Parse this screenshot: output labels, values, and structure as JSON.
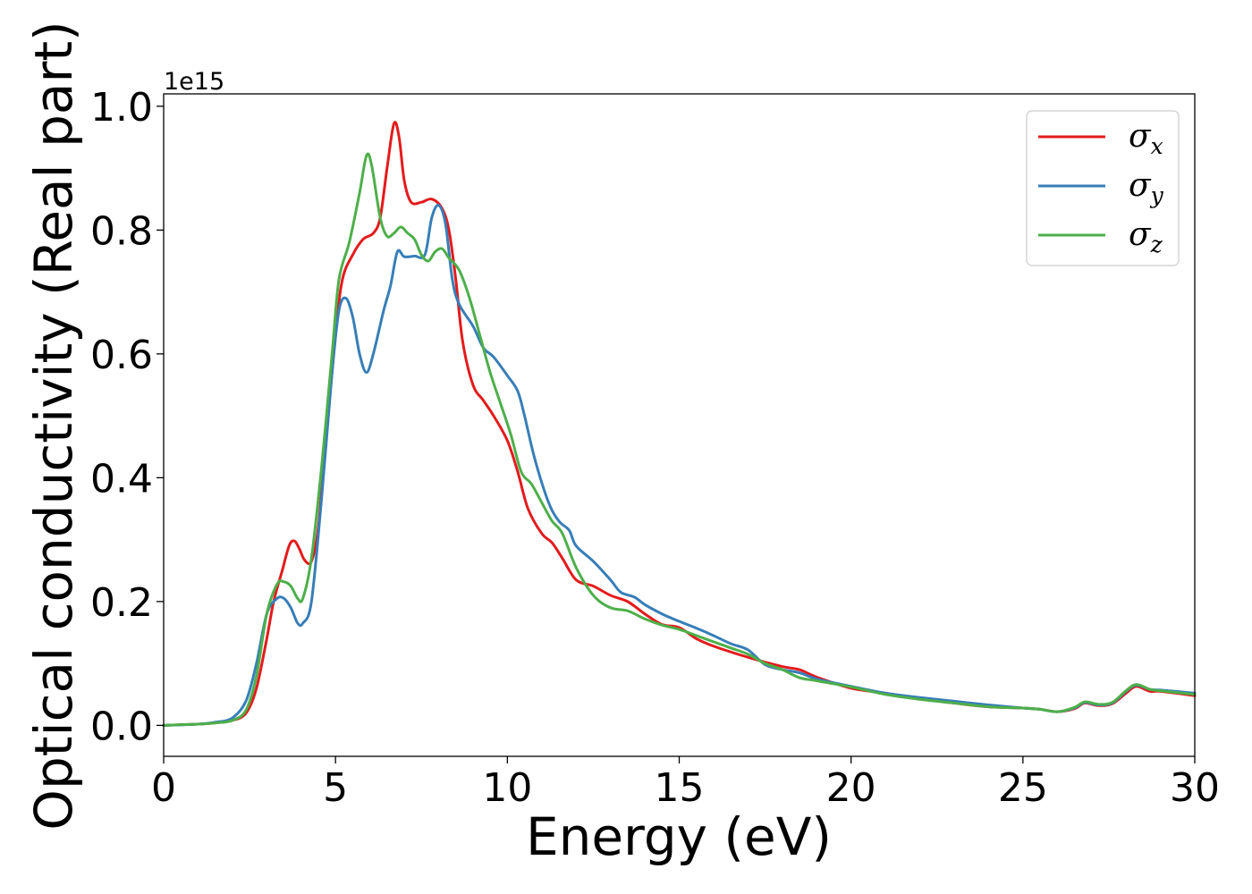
{
  "chart_data": {
    "type": "line",
    "title": "",
    "xlabel": "Energy (eV)",
    "ylabel": "Optical conductivity (Real part)",
    "y_offset_label": "1e15",
    "xlim": [
      0,
      30
    ],
    "ylim": [
      -0.05,
      1.02
    ],
    "xticks": [
      0,
      5,
      10,
      15,
      20,
      25,
      30
    ],
    "xtick_labels": [
      "0",
      "5",
      "10",
      "15",
      "20",
      "25",
      "30"
    ],
    "yticks": [
      0.0,
      0.2,
      0.4,
      0.6,
      0.8,
      1.0
    ],
    "ytick_labels": [
      "0.0",
      "0.2",
      "0.4",
      "0.6",
      "0.8",
      "1.0"
    ],
    "grid": false,
    "legend_position": "top-right",
    "series": [
      {
        "name": "σx",
        "name_base": "σ",
        "name_sub": "x",
        "color": "#e41a1c",
        "points": [
          [
            0,
            0
          ],
          [
            1,
            0.002
          ],
          [
            1.5,
            0.004
          ],
          [
            2,
            0.008
          ],
          [
            2.4,
            0.02
          ],
          [
            2.7,
            0.06
          ],
          [
            3,
            0.14
          ],
          [
            3.2,
            0.2
          ],
          [
            3.45,
            0.25
          ],
          [
            3.65,
            0.29
          ],
          [
            3.8,
            0.298
          ],
          [
            3.95,
            0.285
          ],
          [
            4.1,
            0.267
          ],
          [
            4.3,
            0.265
          ],
          [
            4.5,
            0.32
          ],
          [
            4.7,
            0.45
          ],
          [
            5,
            0.63
          ],
          [
            5.2,
            0.72
          ],
          [
            5.5,
            0.76
          ],
          [
            5.8,
            0.785
          ],
          [
            6.1,
            0.795
          ],
          [
            6.3,
            0.82
          ],
          [
            6.5,
            0.9
          ],
          [
            6.7,
            0.972
          ],
          [
            6.85,
            0.95
          ],
          [
            7,
            0.88
          ],
          [
            7.2,
            0.845
          ],
          [
            7.5,
            0.845
          ],
          [
            7.8,
            0.85
          ],
          [
            8.1,
            0.835
          ],
          [
            8.3,
            0.8
          ],
          [
            8.5,
            0.72
          ],
          [
            8.7,
            0.62
          ],
          [
            9,
            0.55
          ],
          [
            9.3,
            0.525
          ],
          [
            9.6,
            0.5
          ],
          [
            10,
            0.46
          ],
          [
            10.3,
            0.41
          ],
          [
            10.6,
            0.35
          ],
          [
            11,
            0.31
          ],
          [
            11.3,
            0.295
          ],
          [
            11.6,
            0.27
          ],
          [
            12,
            0.235
          ],
          [
            12.5,
            0.225
          ],
          [
            13,
            0.21
          ],
          [
            13.5,
            0.2
          ],
          [
            14,
            0.18
          ],
          [
            14.5,
            0.163
          ],
          [
            15,
            0.158
          ],
          [
            15.5,
            0.14
          ],
          [
            16,
            0.128
          ],
          [
            17,
            0.11
          ],
          [
            18,
            0.095
          ],
          [
            18.5,
            0.09
          ],
          [
            19,
            0.078
          ],
          [
            20,
            0.06
          ],
          [
            21,
            0.052
          ],
          [
            22,
            0.043
          ],
          [
            23,
            0.036
          ],
          [
            24,
            0.03
          ],
          [
            25,
            0.028
          ],
          [
            25.5,
            0.026
          ],
          [
            26,
            0.022
          ],
          [
            26.5,
            0.027
          ],
          [
            26.8,
            0.036
          ],
          [
            27.2,
            0.032
          ],
          [
            27.6,
            0.035
          ],
          [
            28,
            0.052
          ],
          [
            28.3,
            0.063
          ],
          [
            28.7,
            0.055
          ],
          [
            29,
            0.055
          ],
          [
            30,
            0.048
          ]
        ]
      },
      {
        "name": "σy",
        "name_base": "σ",
        "name_sub": "y",
        "color": "#377eb8",
        "points": [
          [
            0,
            0
          ],
          [
            1,
            0.002
          ],
          [
            1.5,
            0.005
          ],
          [
            2,
            0.012
          ],
          [
            2.4,
            0.04
          ],
          [
            2.7,
            0.1
          ],
          [
            3,
            0.18
          ],
          [
            3.3,
            0.205
          ],
          [
            3.5,
            0.205
          ],
          [
            3.7,
            0.19
          ],
          [
            3.9,
            0.165
          ],
          [
            4.05,
            0.165
          ],
          [
            4.3,
            0.2
          ],
          [
            4.6,
            0.37
          ],
          [
            4.9,
            0.57
          ],
          [
            5.1,
            0.67
          ],
          [
            5.3,
            0.69
          ],
          [
            5.5,
            0.66
          ],
          [
            5.7,
            0.6
          ],
          [
            5.9,
            0.57
          ],
          [
            6.1,
            0.6
          ],
          [
            6.4,
            0.67
          ],
          [
            6.6,
            0.71
          ],
          [
            6.8,
            0.765
          ],
          [
            7,
            0.757
          ],
          [
            7.3,
            0.758
          ],
          [
            7.6,
            0.76
          ],
          [
            7.8,
            0.82
          ],
          [
            8,
            0.84
          ],
          [
            8.2,
            0.81
          ],
          [
            8.4,
            0.72
          ],
          [
            8.6,
            0.68
          ],
          [
            9,
            0.645
          ],
          [
            9.3,
            0.61
          ],
          [
            9.6,
            0.595
          ],
          [
            10,
            0.565
          ],
          [
            10.3,
            0.54
          ],
          [
            10.5,
            0.5
          ],
          [
            10.8,
            0.43
          ],
          [
            11.2,
            0.36
          ],
          [
            11.5,
            0.33
          ],
          [
            11.8,
            0.315
          ],
          [
            12,
            0.29
          ],
          [
            12.5,
            0.265
          ],
          [
            13,
            0.235
          ],
          [
            13.3,
            0.215
          ],
          [
            13.7,
            0.207
          ],
          [
            14,
            0.195
          ],
          [
            14.5,
            0.18
          ],
          [
            15,
            0.168
          ],
          [
            15.5,
            0.157
          ],
          [
            16,
            0.145
          ],
          [
            16.5,
            0.132
          ],
          [
            17,
            0.122
          ],
          [
            17.5,
            0.098
          ],
          [
            18,
            0.09
          ],
          [
            18.5,
            0.085
          ],
          [
            19,
            0.075
          ],
          [
            20,
            0.063
          ],
          [
            21,
            0.052
          ],
          [
            22,
            0.045
          ],
          [
            23,
            0.039
          ],
          [
            24,
            0.033
          ],
          [
            25,
            0.028
          ],
          [
            25.5,
            0.026
          ],
          [
            26,
            0.022
          ],
          [
            26.5,
            0.028
          ],
          [
            26.8,
            0.037
          ],
          [
            27.2,
            0.033
          ],
          [
            27.6,
            0.036
          ],
          [
            28,
            0.055
          ],
          [
            28.3,
            0.065
          ],
          [
            28.7,
            0.058
          ],
          [
            29,
            0.057
          ],
          [
            30,
            0.052
          ]
        ]
      },
      {
        "name": "σz",
        "name_base": "σ",
        "name_sub": "z",
        "color": "#4daf4a",
        "points": [
          [
            0,
            0
          ],
          [
            1,
            0.002
          ],
          [
            1.5,
            0.004
          ],
          [
            2,
            0.008
          ],
          [
            2.4,
            0.025
          ],
          [
            2.7,
            0.08
          ],
          [
            3,
            0.18
          ],
          [
            3.3,
            0.228
          ],
          [
            3.5,
            0.232
          ],
          [
            3.7,
            0.225
          ],
          [
            3.9,
            0.205
          ],
          [
            4.05,
            0.205
          ],
          [
            4.3,
            0.27
          ],
          [
            4.6,
            0.42
          ],
          [
            4.9,
            0.6
          ],
          [
            5.1,
            0.72
          ],
          [
            5.4,
            0.78
          ],
          [
            5.7,
            0.86
          ],
          [
            5.9,
            0.92
          ],
          [
            6.05,
            0.905
          ],
          [
            6.3,
            0.82
          ],
          [
            6.5,
            0.79
          ],
          [
            6.7,
            0.795
          ],
          [
            6.9,
            0.805
          ],
          [
            7.1,
            0.795
          ],
          [
            7.3,
            0.785
          ],
          [
            7.5,
            0.76
          ],
          [
            7.7,
            0.75
          ],
          [
            7.9,
            0.765
          ],
          [
            8.1,
            0.77
          ],
          [
            8.3,
            0.755
          ],
          [
            8.6,
            0.735
          ],
          [
            8.9,
            0.69
          ],
          [
            9.2,
            0.63
          ],
          [
            9.5,
            0.57
          ],
          [
            9.8,
            0.52
          ],
          [
            10.1,
            0.47
          ],
          [
            10.4,
            0.41
          ],
          [
            10.7,
            0.39
          ],
          [
            11,
            0.36
          ],
          [
            11.3,
            0.33
          ],
          [
            11.6,
            0.31
          ],
          [
            12,
            0.255
          ],
          [
            12.5,
            0.21
          ],
          [
            13,
            0.19
          ],
          [
            13.5,
            0.185
          ],
          [
            14,
            0.172
          ],
          [
            14.5,
            0.162
          ],
          [
            15,
            0.155
          ],
          [
            15.5,
            0.145
          ],
          [
            16,
            0.135
          ],
          [
            16.5,
            0.125
          ],
          [
            17,
            0.115
          ],
          [
            17.5,
            0.1
          ],
          [
            18,
            0.09
          ],
          [
            18.5,
            0.077
          ],
          [
            19,
            0.072
          ],
          [
            20,
            0.062
          ],
          [
            21,
            0.05
          ],
          [
            22,
            0.042
          ],
          [
            23,
            0.036
          ],
          [
            24,
            0.03
          ],
          [
            25,
            0.028
          ],
          [
            25.5,
            0.026
          ],
          [
            26,
            0.022
          ],
          [
            26.5,
            0.029
          ],
          [
            26.8,
            0.038
          ],
          [
            27.2,
            0.034
          ],
          [
            27.6,
            0.037
          ],
          [
            28,
            0.056
          ],
          [
            28.3,
            0.066
          ],
          [
            28.7,
            0.058
          ],
          [
            29,
            0.056
          ],
          [
            30,
            0.05
          ]
        ]
      }
    ]
  }
}
